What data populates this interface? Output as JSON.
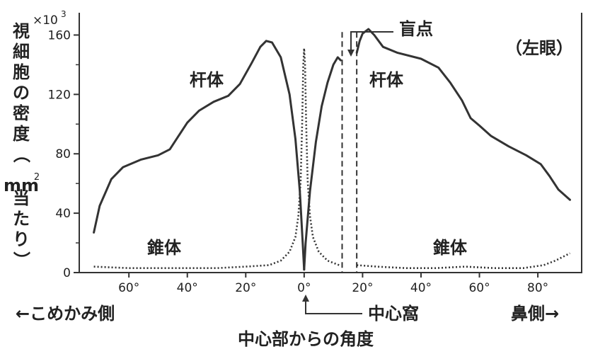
{
  "chart_data": {
    "type": "line",
    "xlabel": "中心部からの角度",
    "ylabel_chars": [
      "視",
      "細",
      "胞",
      "の",
      "密",
      "度",
      "（",
      "mm",
      "当",
      "た",
      "り",
      "）"
    ],
    "ylabel_sup": "2",
    "y_multiplier": "×10",
    "y_multiplier_exp": "3",
    "xlim": [
      -77,
      95
    ],
    "ylim": [
      0,
      175
    ],
    "yticks": [
      0,
      40,
      80,
      120,
      160
    ],
    "ytick_labels": [
      "0",
      "40",
      "80",
      "120",
      "160"
    ],
    "xticks": [
      -60,
      -40,
      -20,
      0,
      20,
      40,
      60,
      80
    ],
    "xtick_labels": [
      "60°",
      "40°",
      "20°",
      "0°",
      "20°",
      "40°",
      "60°",
      "80°"
    ],
    "annotations": {
      "eye": "（左眼）",
      "blind_spot": "盲点",
      "rod_left": "杆体",
      "rod_right": "杆体",
      "cone_left": "錐体",
      "cone_right": "錐体",
      "temporal": "←こめかみ側",
      "fovea": "中心窩",
      "nasal": "鼻側→"
    },
    "blind_spot_range": [
      13,
      18
    ],
    "series": [
      {
        "name": "杆体",
        "style": "solid",
        "color": "#333333",
        "segments": [
          [
            [
              -72,
              27
            ],
            [
              -70,
              45
            ],
            [
              -66,
              63
            ],
            [
              -62,
              71
            ],
            [
              -56,
              76
            ],
            [
              -50,
              79
            ],
            [
              -46,
              83
            ],
            [
              -43,
              92
            ],
            [
              -40,
              101
            ],
            [
              -36,
              109
            ],
            [
              -31,
              115
            ],
            [
              -26,
              119
            ],
            [
              -22,
              127
            ],
            [
              -18,
              141
            ],
            [
              -15,
              152
            ],
            [
              -13,
              156
            ],
            [
              -11,
              155
            ],
            [
              -8,
              145
            ],
            [
              -5,
              120
            ],
            [
              -3,
              90
            ],
            [
              -1.5,
              55
            ],
            [
              -0.5,
              20
            ],
            [
              0,
              2
            ]
          ],
          [
            [
              0,
              2
            ],
            [
              0.5,
              20
            ],
            [
              2,
              55
            ],
            [
              4,
              88
            ],
            [
              6,
              112
            ],
            [
              8,
              128
            ],
            [
              10,
              140
            ],
            [
              11.5,
              145
            ],
            [
              12.5,
              143
            ]
          ],
          [
            [
              18,
              148
            ],
            [
              19,
              156
            ],
            [
              20,
              161
            ],
            [
              22,
              164
            ],
            [
              24,
              160
            ],
            [
              27,
              152
            ],
            [
              32,
              148
            ],
            [
              40,
              144
            ],
            [
              46,
              138
            ],
            [
              50,
              128
            ],
            [
              54,
              116
            ],
            [
              57,
              104
            ],
            [
              60,
              99
            ],
            [
              64,
              92
            ],
            [
              70,
              85
            ],
            [
              76,
              79
            ],
            [
              81,
              73
            ],
            [
              84,
              65
            ],
            [
              87,
              56
            ],
            [
              91,
              49
            ]
          ]
        ]
      },
      {
        "name": "錐体",
        "style": "dotted",
        "color": "#333333",
        "segments": [
          [
            [
              -72,
              4
            ],
            [
              -60,
              3
            ],
            [
              -45,
              3
            ],
            [
              -30,
              3
            ],
            [
              -20,
              4
            ],
            [
              -12,
              5
            ],
            [
              -8,
              8
            ],
            [
              -5,
              14
            ],
            [
              -3,
              24
            ],
            [
              -2,
              38
            ],
            [
              -1.2,
              62
            ],
            [
              -0.7,
              100
            ],
            [
              -0.3,
              140
            ],
            [
              0,
              151
            ],
            [
              0.3,
              140
            ],
            [
              0.7,
              100
            ],
            [
              1.2,
              62
            ],
            [
              2,
              38
            ],
            [
              3,
              24
            ],
            [
              5,
              14
            ],
            [
              8,
              8
            ],
            [
              12,
              5
            ]
          ],
          [
            [
              18,
              5
            ],
            [
              25,
              4
            ],
            [
              35,
              3
            ],
            [
              45,
              3
            ],
            [
              55,
              4
            ],
            [
              65,
              3
            ],
            [
              75,
              3
            ],
            [
              82,
              5
            ],
            [
              86,
              8
            ],
            [
              89,
              11
            ],
            [
              91,
              13
            ]
          ]
        ]
      }
    ]
  }
}
